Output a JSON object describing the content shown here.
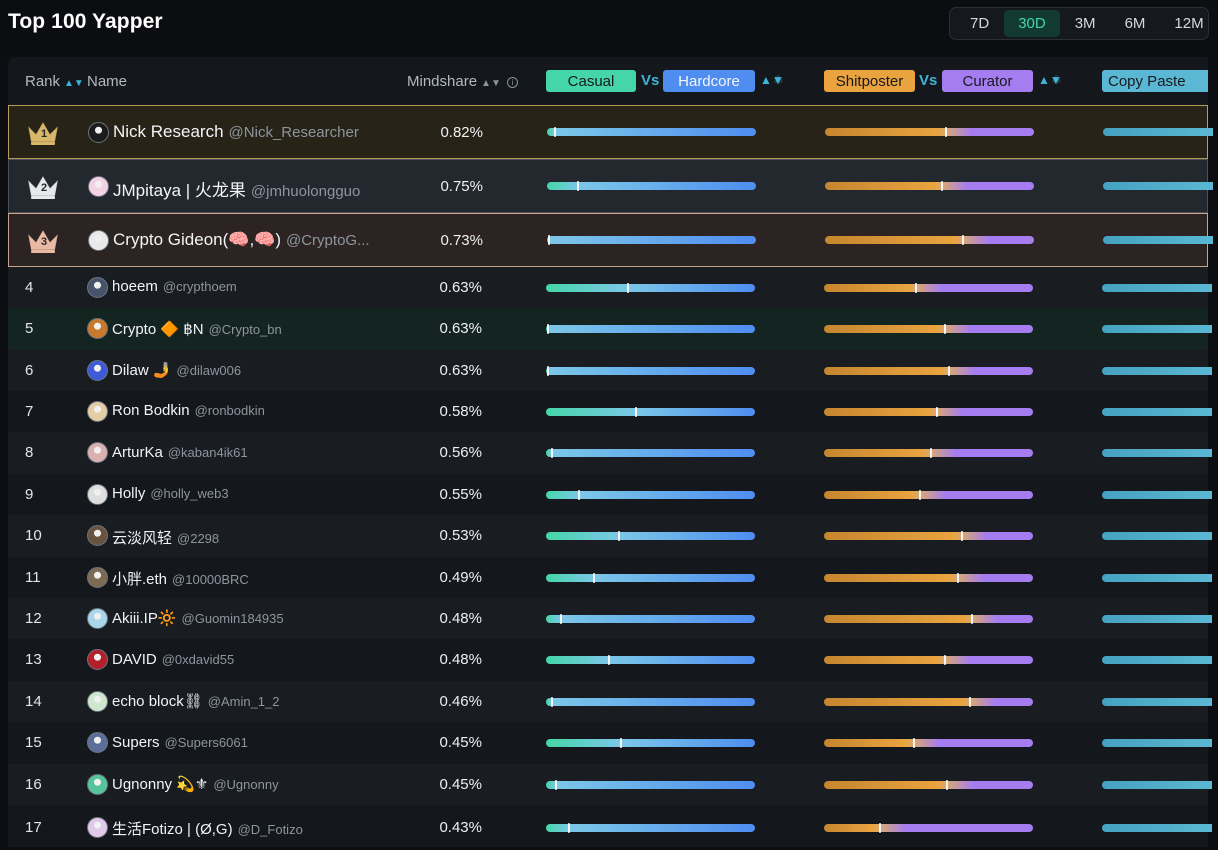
{
  "page": {
    "title": "Top 100 Yapper",
    "ranges": [
      {
        "label": "7D",
        "active": false
      },
      {
        "label": "30D",
        "active": true
      },
      {
        "label": "3M",
        "active": false
      },
      {
        "label": "6M",
        "active": false
      },
      {
        "label": "12M",
        "active": false
      }
    ]
  },
  "table": {
    "columns": {
      "rank": "Rank",
      "name": "Name",
      "mindshare": "Mindshare",
      "casual": "Casual",
      "vs1": "Vs",
      "hardcore": "Hardcore",
      "shitposter": "Shitposter",
      "vs2": "Vs",
      "curator": "Curator",
      "copy": "Copy Paste"
    },
    "colors": {
      "casual": "#44d6a8",
      "hardcore": "#4f8df0",
      "shitposter": "#e9a33f",
      "curator": "#a57df0",
      "copy": "#5bb8d4",
      "accent": "#3fb4d6"
    },
    "rows": [
      {
        "rank": "1",
        "name": "Nick Research",
        "handle": "@Nick_Researcher",
        "mindshare": "0.82%",
        "casual": 0.04,
        "shitposter": 0.58
      },
      {
        "rank": "2",
        "name": "JMpitaya | 火龙果",
        "handle": "@jmhuolongguo",
        "mindshare": "0.75%",
        "casual": 0.15,
        "shitposter": 0.56
      },
      {
        "rank": "3",
        "name": "Crypto Gideon(🧠,🧠)",
        "handle": "@CryptoG...",
        "mindshare": "0.73%",
        "casual": 0.01,
        "shitposter": 0.66
      },
      {
        "rank": "4",
        "name": "hoeem",
        "handle": "@crypthoem",
        "mindshare": "0.63%",
        "casual": 0.39,
        "shitposter": 0.44
      },
      {
        "rank": "5",
        "name": "Crypto 🔶 ฿N",
        "handle": "@Crypto_bn",
        "mindshare": "0.63%",
        "casual": 0.01,
        "shitposter": 0.58
      },
      {
        "rank": "6",
        "name": "Dilaw 🤳",
        "handle": "@dilaw006",
        "mindshare": "0.63%",
        "casual": 0.01,
        "shitposter": 0.6
      },
      {
        "rank": "7",
        "name": "Ron Bodkin",
        "handle": "@ronbodkin",
        "mindshare": "0.58%",
        "casual": 0.43,
        "shitposter": 0.54
      },
      {
        "rank": "8",
        "name": "ArturKa",
        "handle": "@kaban4ik61",
        "mindshare": "0.56%",
        "casual": 0.03,
        "shitposter": 0.51
      },
      {
        "rank": "9",
        "name": "Holly",
        "handle": "@holly_web3",
        "mindshare": "0.55%",
        "casual": 0.16,
        "shitposter": 0.46
      },
      {
        "rank": "10",
        "name": "云淡风轻",
        "handle": "@2298",
        "mindshare": "0.53%",
        "casual": 0.35,
        "shitposter": 0.66
      },
      {
        "rank": "11",
        "name": "小胖.eth",
        "handle": "@10000BRC",
        "mindshare": "0.49%",
        "casual": 0.23,
        "shitposter": 0.64
      },
      {
        "rank": "12",
        "name": "Akiii.IP🔆",
        "handle": "@Guomin184935",
        "mindshare": "0.48%",
        "casual": 0.07,
        "shitposter": 0.71
      },
      {
        "rank": "13",
        "name": "DAVID",
        "handle": "@0xdavid55",
        "mindshare": "0.48%",
        "casual": 0.3,
        "shitposter": 0.58
      },
      {
        "rank": "14",
        "name": "echo block⛓",
        "handle": "@Amin_1_2",
        "mindshare": "0.46%",
        "casual": 0.03,
        "shitposter": 0.7
      },
      {
        "rank": "15",
        "name": "Supers",
        "handle": "@Supers6061",
        "mindshare": "0.45%",
        "casual": 0.36,
        "shitposter": 0.43
      },
      {
        "rank": "16",
        "name": "Ugnonny 💫⚜",
        "handle": "@Ugnonny",
        "mindshare": "0.45%",
        "casual": 0.05,
        "shitposter": 0.59
      },
      {
        "rank": "17",
        "name": "生活Fotizo | (Ø,G)",
        "handle": "@D_Fotizo",
        "mindshare": "0.43%",
        "casual": 0.11,
        "shitposter": 0.27
      }
    ]
  }
}
